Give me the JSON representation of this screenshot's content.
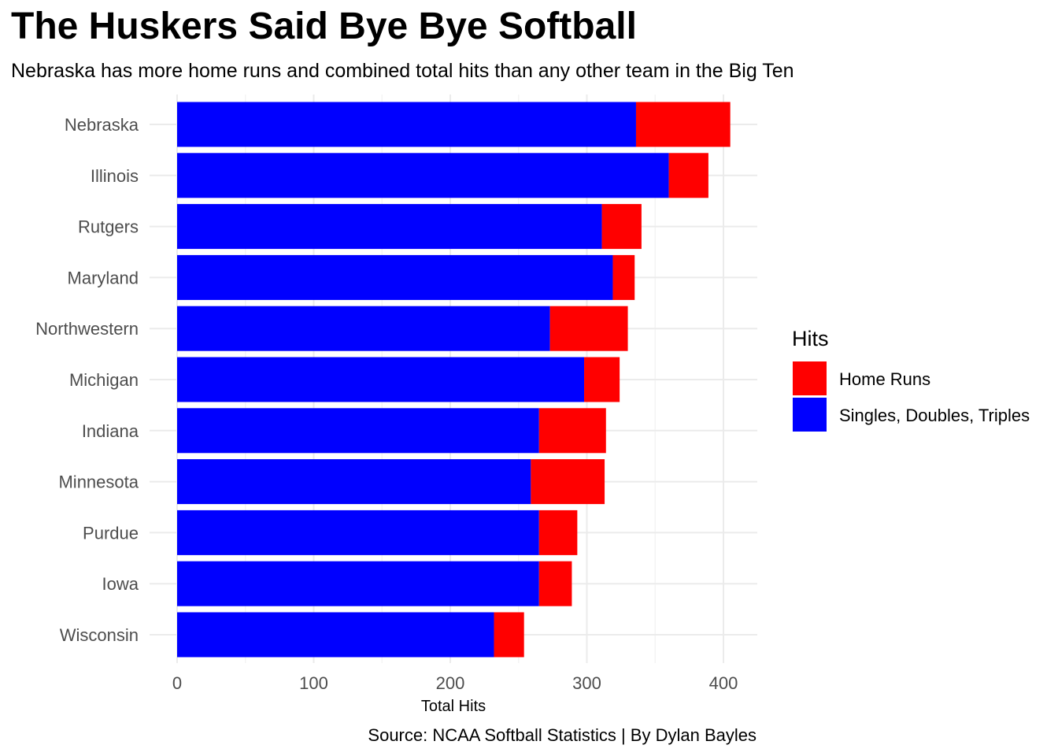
{
  "chart_data": {
    "type": "bar",
    "orientation": "horizontal",
    "stacked": true,
    "title": "The Huskers Said Bye Bye Softball",
    "subtitle": "Nebraska has more home runs and combined total hits than any other team in the Big Ten",
    "xlabel": "Total Hits",
    "ylabel": "",
    "caption": "Source: NCAA Softball Statistics | By Dylan Bayles",
    "xlim": [
      0,
      425
    ],
    "xticks": [
      0,
      100,
      200,
      300,
      400
    ],
    "grid": true,
    "legend_title": "Hits",
    "legend_position": "right",
    "categories": [
      "Nebraska",
      "Illinois",
      "Rutgers",
      "Maryland",
      "Northwestern",
      "Michigan",
      "Indiana",
      "Minnesota",
      "Purdue",
      "Iowa",
      "Wisconsin"
    ],
    "series": [
      {
        "name": "Singles, Doubles, Triples",
        "color": "#0000FF",
        "values": [
          336,
          360,
          311,
          319,
          273,
          298,
          265,
          259,
          265,
          265,
          232
        ]
      },
      {
        "name": "Home Runs",
        "color": "#FF0000",
        "values": [
          69,
          29,
          29,
          16,
          57,
          26,
          49,
          54,
          28,
          24,
          22
        ]
      }
    ],
    "legend_order": [
      "Home Runs",
      "Singles, Doubles, Triples"
    ]
  }
}
